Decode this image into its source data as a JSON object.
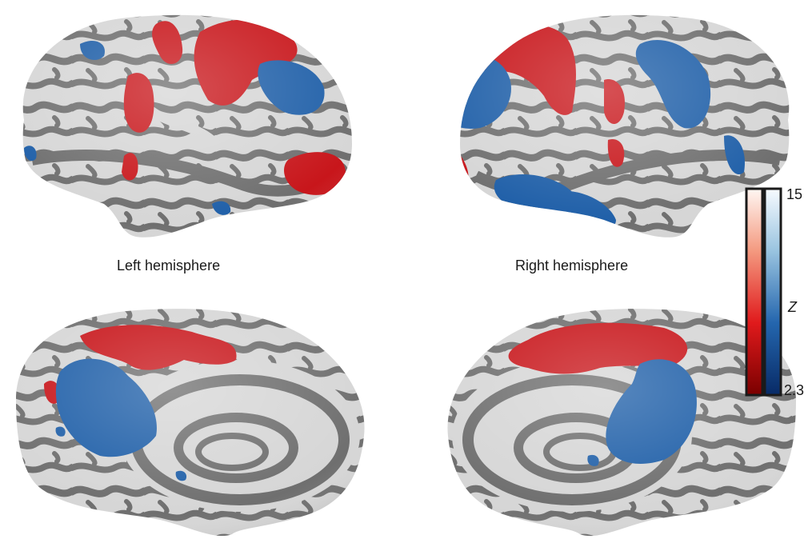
{
  "labels": {
    "left_hemisphere": "Left hemisphere",
    "right_hemisphere": "Right hemisphere"
  },
  "colorbar": {
    "max_label": "15",
    "min_label": "2.3",
    "variable_label": "Z",
    "positive_colors": [
      "#8b0000",
      "#e41a1c",
      "#f4a582",
      "#fff5f0"
    ],
    "negative_colors": [
      "#08306b",
      "#2166ac",
      "#92c5de",
      "#f7fbff"
    ]
  },
  "colors": {
    "sulcus": "#6e6e6e",
    "gyrus": "#d9d9d9",
    "positive": "#c8161b",
    "negative": "#1f5fa8"
  },
  "views": [
    {
      "hemisphere": "left",
      "view": "lateral"
    },
    {
      "hemisphere": "right",
      "view": "lateral"
    },
    {
      "hemisphere": "left",
      "view": "medial"
    },
    {
      "hemisphere": "right",
      "view": "medial"
    }
  ]
}
